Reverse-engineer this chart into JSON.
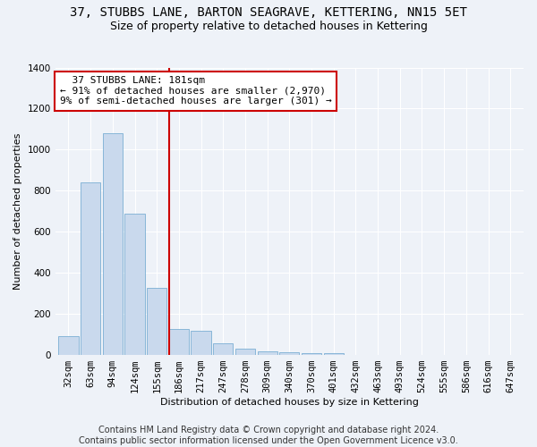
{
  "title1": "37, STUBBS LANE, BARTON SEAGRAVE, KETTERING, NN15 5ET",
  "title2": "Size of property relative to detached houses in Kettering",
  "xlabel": "Distribution of detached houses by size in Kettering",
  "ylabel": "Number of detached properties",
  "categories": [
    "32sqm",
    "63sqm",
    "94sqm",
    "124sqm",
    "155sqm",
    "186sqm",
    "217sqm",
    "247sqm",
    "278sqm",
    "309sqm",
    "340sqm",
    "370sqm",
    "401sqm",
    "432sqm",
    "463sqm",
    "493sqm",
    "524sqm",
    "555sqm",
    "586sqm",
    "616sqm",
    "647sqm"
  ],
  "values": [
    90,
    840,
    1080,
    690,
    325,
    125,
    120,
    55,
    30,
    18,
    15,
    10,
    7,
    0,
    0,
    0,
    0,
    0,
    0,
    0,
    0
  ],
  "bar_color": "#c9d9ed",
  "bar_edge_color": "#7bafd4",
  "annotation_text": "  37 STUBBS LANE: 181sqm\n← 91% of detached houses are smaller (2,970)\n9% of semi-detached houses are larger (301) →",
  "annotation_box_color": "#ffffff",
  "annotation_box_edge": "#cc0000",
  "vline_color": "#cc0000",
  "vline_x": 4.57,
  "ylim": [
    0,
    1400
  ],
  "yticks": [
    0,
    200,
    400,
    600,
    800,
    1000,
    1200,
    1400
  ],
  "footer1": "Contains HM Land Registry data © Crown copyright and database right 2024.",
  "footer2": "Contains public sector information licensed under the Open Government Licence v3.0.",
  "bg_color": "#eef2f8",
  "plot_bg_color": "#eef2f8",
  "grid_color": "#ffffff",
  "title1_fontsize": 10,
  "title2_fontsize": 9,
  "axis_fontsize": 8,
  "tick_fontsize": 7.5,
  "annotation_fontsize": 8,
  "footer_fontsize": 7
}
